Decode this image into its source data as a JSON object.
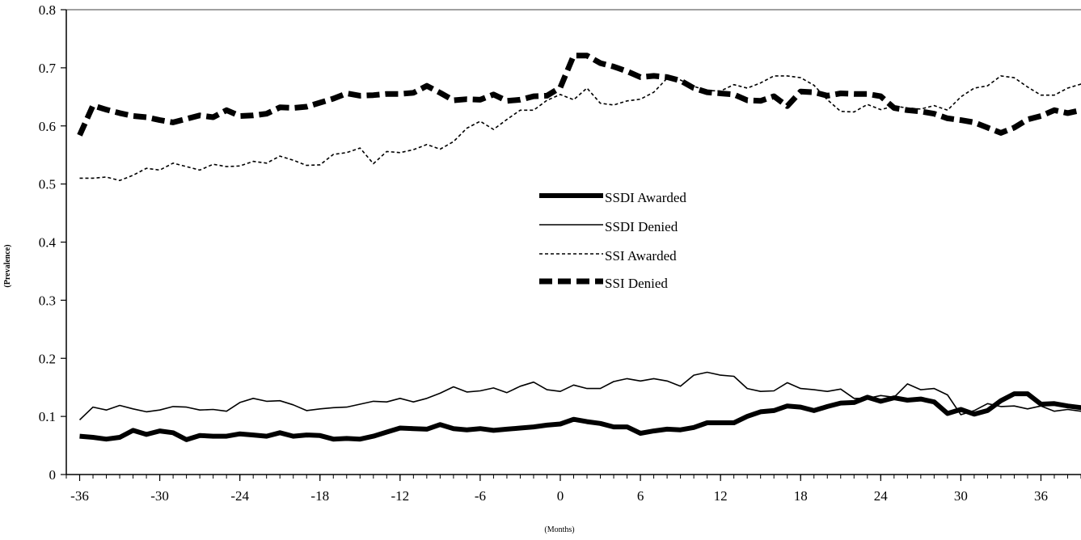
{
  "chart_data": {
    "type": "line",
    "title": "",
    "xlabel": "(Months)",
    "ylabel": "(Prevalence)",
    "xlim": [
      -37,
      39
    ],
    "ylim": [
      0,
      0.8
    ],
    "x_ticks": [
      -36,
      -30,
      -24,
      -18,
      -12,
      -6,
      0,
      6,
      12,
      18,
      24,
      30,
      36
    ],
    "y_ticks": [
      "0",
      "0.1",
      "0.2",
      "0.3",
      "0.4",
      "0.5",
      "0.6",
      "0.7",
      "0.8"
    ],
    "y_tick_values": [
      0,
      0.1,
      0.2,
      0.3,
      0.4,
      0.5,
      0.6,
      0.7,
      0.8
    ],
    "x_start": -36,
    "x_end": 39,
    "legend_position": "center",
    "series": [
      {
        "name": "SSDI Awarded",
        "style": "thick",
        "color": "#000000",
        "values": [
          0.066,
          0.064,
          0.061,
          0.064,
          0.076,
          0.069,
          0.075,
          0.072,
          0.06,
          0.067,
          0.066,
          0.066,
          0.07,
          0.068,
          0.066,
          0.072,
          0.066,
          0.068,
          0.067,
          0.061,
          0.062,
          0.061,
          0.066,
          0.073,
          0.08,
          0.079,
          0.078,
          0.086,
          0.079,
          0.077,
          0.079,
          0.076,
          0.078,
          0.08,
          0.082,
          0.085,
          0.087,
          0.095,
          0.091,
          0.088,
          0.082,
          0.082,
          0.071,
          0.075,
          0.078,
          0.077,
          0.081,
          0.089,
          0.089,
          0.089,
          0.1,
          0.108,
          0.11,
          0.118,
          0.116,
          0.11,
          0.117,
          0.123,
          0.124,
          0.133,
          0.126,
          0.132,
          0.128,
          0.13,
          0.125,
          0.105,
          0.112,
          0.104,
          0.11,
          0.127,
          0.139,
          0.139,
          0.121,
          0.122,
          0.118,
          0.115,
          0.12
        ]
      },
      {
        "name": "SSDI Denied",
        "style": "thin",
        "color": "#000000",
        "values": [
          0.094,
          0.116,
          0.111,
          0.119,
          0.113,
          0.108,
          0.111,
          0.117,
          0.116,
          0.111,
          0.112,
          0.109,
          0.124,
          0.131,
          0.126,
          0.127,
          0.12,
          0.11,
          0.113,
          0.115,
          0.116,
          0.121,
          0.126,
          0.125,
          0.131,
          0.125,
          0.131,
          0.14,
          0.151,
          0.142,
          0.144,
          0.149,
          0.141,
          0.152,
          0.159,
          0.146,
          0.143,
          0.154,
          0.148,
          0.148,
          0.16,
          0.165,
          0.161,
          0.165,
          0.161,
          0.152,
          0.171,
          0.176,
          0.171,
          0.169,
          0.148,
          0.143,
          0.144,
          0.158,
          0.148,
          0.146,
          0.143,
          0.147,
          0.131,
          0.131,
          0.136,
          0.133,
          0.156,
          0.146,
          0.148,
          0.137,
          0.103,
          0.11,
          0.122,
          0.117,
          0.118,
          0.113,
          0.118,
          0.109,
          0.112,
          0.109,
          0.112
        ]
      },
      {
        "name": "SSI Awarded",
        "style": "dotted",
        "color": "#000000",
        "values": [
          0.51,
          0.51,
          0.512,
          0.506,
          0.515,
          0.527,
          0.524,
          0.536,
          0.53,
          0.524,
          0.534,
          0.53,
          0.531,
          0.539,
          0.536,
          0.548,
          0.541,
          0.532,
          0.533,
          0.551,
          0.554,
          0.562,
          0.535,
          0.556,
          0.554,
          0.559,
          0.568,
          0.56,
          0.573,
          0.596,
          0.608,
          0.594,
          0.611,
          0.627,
          0.627,
          0.644,
          0.654,
          0.645,
          0.665,
          0.639,
          0.636,
          0.643,
          0.646,
          0.658,
          0.682,
          0.679,
          0.668,
          0.661,
          0.66,
          0.671,
          0.665,
          0.674,
          0.686,
          0.686,
          0.683,
          0.67,
          0.645,
          0.625,
          0.624,
          0.637,
          0.628,
          0.634,
          0.631,
          0.629,
          0.635,
          0.627,
          0.65,
          0.665,
          0.669,
          0.686,
          0.683,
          0.667,
          0.653,
          0.653,
          0.665,
          0.672,
          0.67
        ]
      },
      {
        "name": "SSI Denied",
        "style": "dashed",
        "color": "#000000",
        "values": [
          0.584,
          0.635,
          0.628,
          0.622,
          0.617,
          0.615,
          0.61,
          0.606,
          0.612,
          0.618,
          0.615,
          0.627,
          0.617,
          0.618,
          0.621,
          0.632,
          0.631,
          0.633,
          0.64,
          0.647,
          0.656,
          0.652,
          0.653,
          0.655,
          0.655,
          0.657,
          0.669,
          0.657,
          0.644,
          0.646,
          0.645,
          0.654,
          0.643,
          0.645,
          0.651,
          0.652,
          0.666,
          0.721,
          0.721,
          0.708,
          0.702,
          0.694,
          0.684,
          0.686,
          0.684,
          0.678,
          0.665,
          0.658,
          0.656,
          0.654,
          0.644,
          0.643,
          0.651,
          0.634,
          0.659,
          0.658,
          0.652,
          0.656,
          0.655,
          0.655,
          0.651,
          0.631,
          0.627,
          0.625,
          0.621,
          0.613,
          0.61,
          0.606,
          0.597,
          0.588,
          0.597,
          0.611,
          0.617,
          0.627,
          0.622,
          0.627,
          0.631
        ]
      }
    ]
  }
}
